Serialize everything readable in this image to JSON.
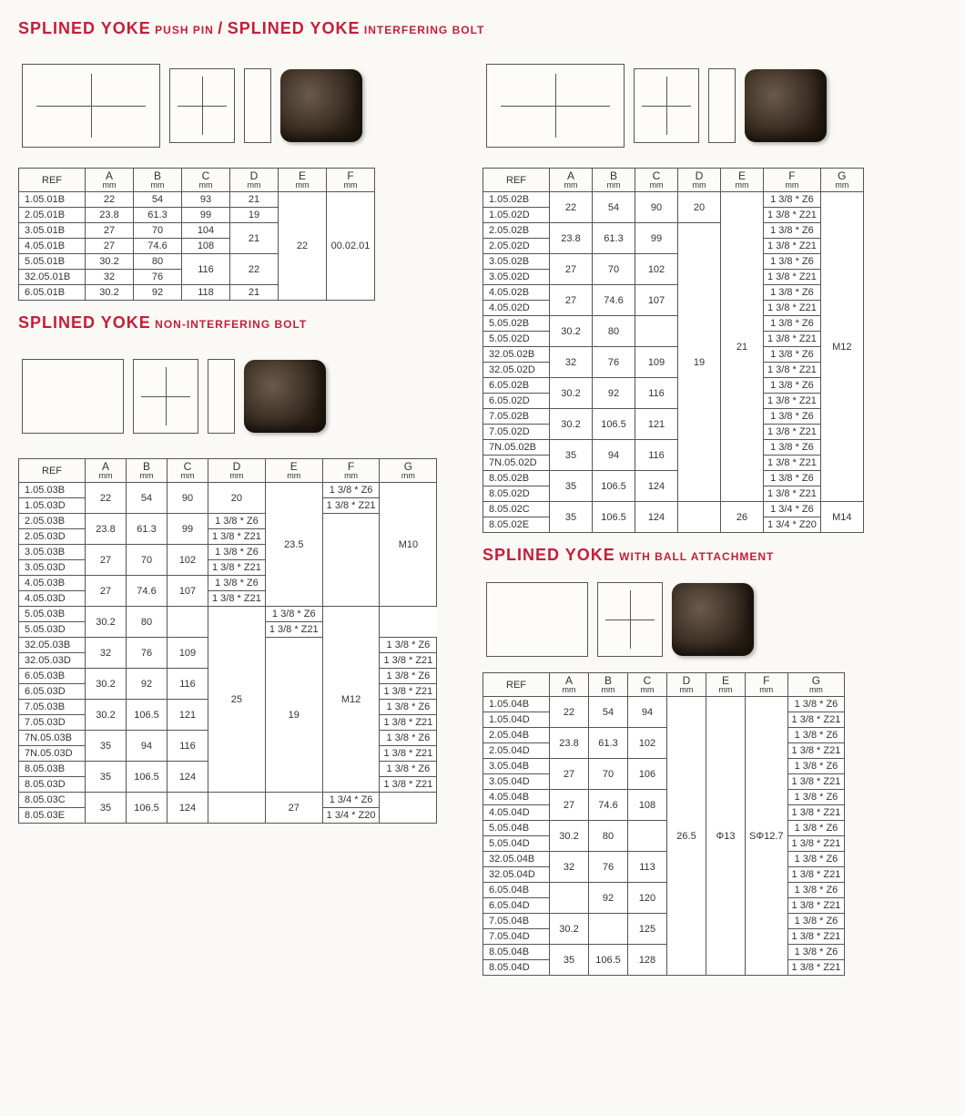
{
  "titles": {
    "push_pin_big1": "SPLINED YOKE",
    "push_pin_small1": "PUSH PIN",
    "push_pin_sep": "/",
    "push_pin_big2": "SPLINED YOKE",
    "push_pin_small2": "INTERFERING BOLT",
    "nonint_big": "SPLINED YOKE",
    "nonint_small": "NON-INTERFERING BOLT",
    "ball_big": "SPLINED YOKE",
    "ball_small": "WITH BALL ATTACHMENT"
  },
  "headers": {
    "ref": "REF",
    "A": "A",
    "B": "B",
    "C": "C",
    "D": "D",
    "E": "E",
    "F": "F",
    "G": "G",
    "mm": "mm"
  },
  "table1": {
    "rows": [
      {
        "ref": "1.05.01B",
        "a": "22",
        "b": "54",
        "c": "93",
        "d": "21"
      },
      {
        "ref": "2.05.01B",
        "a": "23.8",
        "b": "61.3",
        "c": "99",
        "d": "19"
      },
      {
        "ref": "3.05.01B",
        "a": "27",
        "b": "70",
        "c": "104",
        "d_span": 2,
        "d": "21"
      },
      {
        "ref": "4.05.01B",
        "a": "27",
        "b": "74.6",
        "c": "108"
      },
      {
        "ref": "5.05.01B",
        "a": "30.2",
        "b": "80",
        "c_span": 2,
        "c": "116",
        "d_span": 2,
        "d": "22"
      },
      {
        "ref": "32.05.01B",
        "a": "32",
        "b": "76"
      },
      {
        "ref": "6.05.01B",
        "a": "30.2",
        "b": "92",
        "c": "118",
        "d": "21"
      }
    ],
    "e": "22",
    "f": "00.02.01"
  },
  "table2": {
    "groups": [
      {
        "refs": [
          "1.05.02B",
          "1.05.02D"
        ],
        "a": "22",
        "b": "54",
        "c": "90",
        "d": "20"
      },
      {
        "refs": [
          "2.05.02B",
          "2.05.02D"
        ],
        "a": "23.8",
        "b": "61.3",
        "c": "99",
        "d": ""
      },
      {
        "refs": [
          "3.05.02B",
          "3.05.02D"
        ],
        "a": "27",
        "b": "70",
        "c": "102",
        "d": ""
      },
      {
        "refs": [
          "4.05.02B",
          "4.05.02D"
        ],
        "a": "27",
        "b": "74.6",
        "c": "107",
        "d": ""
      },
      {
        "refs": [
          "5.05.02B",
          "5.05.02D"
        ],
        "a": "30.2",
        "b": "80",
        "c": "",
        "d": ""
      },
      {
        "refs": [
          "32.05.02B",
          "32.05.02D"
        ],
        "a": "32",
        "b": "76",
        "c": "109",
        "d": "19"
      },
      {
        "refs": [
          "6.05.02B",
          "6.05.02D"
        ],
        "a": "30.2",
        "b": "92",
        "c": "116",
        "d": ""
      },
      {
        "refs": [
          "7.05.02B",
          "7.05.02D"
        ],
        "a": "30.2",
        "b": "106.5",
        "c": "121",
        "d": ""
      },
      {
        "refs": [
          "7N.05.02B",
          "7N.05.02D"
        ],
        "a": "35",
        "b": "94",
        "c": "116",
        "d": ""
      },
      {
        "refs": [
          "8.05.02B",
          "8.05.02D"
        ],
        "a": "35",
        "b": "106.5",
        "c": "124",
        "d": ""
      }
    ],
    "last": {
      "refs": [
        "8.05.02C",
        "8.05.02E"
      ],
      "a": "35",
      "b": "106.5",
      "c": "124",
      "e": "26",
      "fB": "1 3/4 * Z6",
      "fD": "1 3/4 * Z20",
      "g": "M14"
    },
    "e_main": "21",
    "g_main": "M12",
    "f_b": "1 3/8 * Z6",
    "f_d": "1 3/8 * Z21"
  },
  "table3": {
    "groups": [
      {
        "refs": [
          "1.05.03B",
          "1.05.03D"
        ],
        "a": "22",
        "b": "54",
        "c": "90",
        "d": "20"
      },
      {
        "refs": [
          "2.05.03B",
          "2.05.03D"
        ],
        "a": "23.8",
        "b": "61.3",
        "c": "99",
        "d": ""
      },
      {
        "refs": [
          "3.05.03B",
          "3.05.03D"
        ],
        "a": "27",
        "b": "70",
        "c": "102",
        "d": ""
      },
      {
        "refs": [
          "4.05.03B",
          "4.05.03D"
        ],
        "a": "27",
        "b": "74.6",
        "c": "107",
        "d": ""
      }
    ],
    "e1": "23.5",
    "g1": "M10",
    "groups2": [
      {
        "refs": [
          "5.05.03B",
          "5.05.03D"
        ],
        "a": "30.2",
        "b": "80",
        "c": "",
        "d": ""
      },
      {
        "refs": [
          "32.05.03B",
          "32.05.03D"
        ],
        "a": "32",
        "b": "76",
        "c": "109",
        "d": "19"
      },
      {
        "refs": [
          "6.05.03B",
          "6.05.03D"
        ],
        "a": "30.2",
        "b": "92",
        "c": "116",
        "d": ""
      },
      {
        "refs": [
          "7.05.03B",
          "7.05.03D"
        ],
        "a": "30.2",
        "b": "106.5",
        "c": "121",
        "d": ""
      },
      {
        "refs": [
          "7N.05.03B",
          "7N.05.03D"
        ],
        "a": "35",
        "b": "94",
        "c": "116",
        "d": ""
      },
      {
        "refs": [
          "8.05.03B",
          "8.05.03D"
        ],
        "a": "35",
        "b": "106.5",
        "c": "124",
        "d": ""
      }
    ],
    "e2": "25",
    "g2": "M12",
    "last": {
      "refs": [
        "8.05.03C",
        "8.05.03E"
      ],
      "a": "35",
      "b": "106.5",
      "c": "124",
      "e": "27",
      "fB": "1 3/4 * Z6",
      "fD": "1 3/4 * Z20"
    },
    "f_b": "1 3/8 * Z6",
    "f_d": "1 3/8 * Z21"
  },
  "table4": {
    "groups": [
      {
        "refs": [
          "1.05.04B",
          "1.05.04D"
        ],
        "a": "22",
        "b": "54",
        "c": "94"
      },
      {
        "refs": [
          "2.05.04B",
          "2.05.04D"
        ],
        "a": "23.8",
        "b": "61.3",
        "c": "102"
      },
      {
        "refs": [
          "3.05.04B",
          "3.05.04D"
        ],
        "a": "27",
        "b": "70",
        "c": "106"
      },
      {
        "refs": [
          "4.05.04B",
          "4.05.04D"
        ],
        "a": "27",
        "b": "74.6",
        "c": "108"
      },
      {
        "refs": [
          "5.05.04B",
          "5.05.04D"
        ],
        "a": "30.2",
        "b": "80",
        "c": ""
      },
      {
        "refs": [
          "32.05.04B",
          "32.05.04D"
        ],
        "a": "32",
        "b": "76",
        "c": "113"
      },
      {
        "refs": [
          "6.05.04B",
          "6.05.04D"
        ],
        "a": "",
        "b": "92",
        "c": "120"
      },
      {
        "refs": [
          "7.05.04B",
          "7.05.04D"
        ],
        "a": "30.2",
        "b": "",
        "c": "125"
      },
      {
        "refs": [
          "8.05.04B",
          "8.05.04D"
        ],
        "a": "35",
        "b": "106.5",
        "c": "128"
      }
    ],
    "d": "26.5",
    "e": "Φ13",
    "f": "SΦ12.7",
    "g_b": "1 3/8 * Z6",
    "g_d": "1 3/8 * Z21"
  }
}
